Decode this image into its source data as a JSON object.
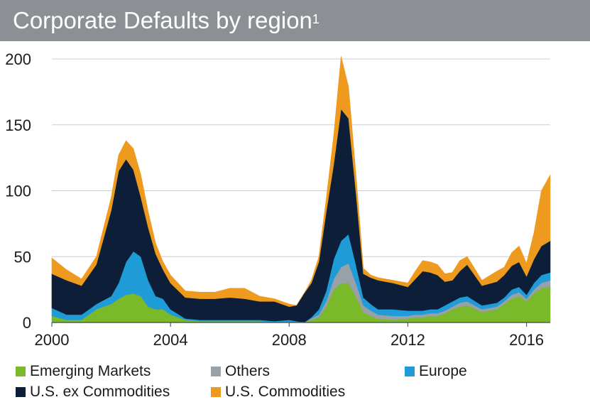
{
  "title": {
    "text": "Corporate Defaults by region",
    "footnote": "1"
  },
  "chart_data": {
    "type": "area",
    "stacked": true,
    "title": "Corporate Defaults by region",
    "xlabel": "",
    "ylabel": "",
    "xlim": [
      2000,
      2016.8
    ],
    "ylim": [
      0,
      200
    ],
    "grid": "horizontal",
    "x_ticks": [
      2000,
      2004,
      2008,
      2012,
      2016
    ],
    "x_tick_labels": [
      "2000",
      "2004",
      "2008",
      "2012",
      "2016"
    ],
    "y_ticks": [
      0,
      50,
      100,
      150,
      200
    ],
    "y_tick_labels": [
      "0",
      "50",
      "100",
      "150",
      "200"
    ],
    "x": [
      2000.0,
      2000.5,
      2001.0,
      2001.5,
      2002.0,
      2002.25,
      2002.5,
      2002.75,
      2003.0,
      2003.25,
      2003.5,
      2003.75,
      2004.0,
      2004.5,
      2005.0,
      2005.5,
      2006.0,
      2006.5,
      2007.0,
      2007.5,
      2008.0,
      2008.25,
      2008.5,
      2008.75,
      2009.0,
      2009.25,
      2009.5,
      2009.75,
      2010.0,
      2010.25,
      2010.5,
      2010.75,
      2011.0,
      2011.5,
      2012.0,
      2012.25,
      2012.5,
      2012.75,
      2013.0,
      2013.25,
      2013.5,
      2013.75,
      2014.0,
      2014.5,
      2015.0,
      2015.25,
      2015.5,
      2015.75,
      2016.0,
      2016.25,
      2016.5,
      2016.8
    ],
    "series": [
      {
        "name": "Emerging Markets",
        "color": "#7ab929",
        "values": [
          5,
          2,
          2,
          10,
          14,
          18,
          21,
          22,
          20,
          12,
          10,
          10,
          6,
          2,
          1,
          1,
          1,
          1,
          1,
          0,
          0,
          0,
          0,
          2,
          4,
          12,
          25,
          30,
          30,
          20,
          8,
          5,
          3,
          2,
          3,
          4,
          4,
          5,
          5,
          7,
          10,
          12,
          13,
          8,
          10,
          14,
          18,
          20,
          16,
          22,
          26,
          27
        ]
      },
      {
        "name": "Others",
        "color": "#98a0a8",
        "values": [
          0,
          0,
          0,
          0,
          0,
          0,
          0,
          0,
          0,
          0,
          0,
          0,
          0,
          0,
          0,
          0,
          0,
          0,
          0,
          0,
          0,
          0,
          0,
          1,
          2,
          4,
          8,
          12,
          15,
          10,
          5,
          4,
          3,
          3,
          2,
          2,
          2,
          2,
          2,
          2,
          2,
          3,
          3,
          2,
          2,
          2,
          3,
          3,
          2,
          3,
          4,
          5
        ]
      },
      {
        "name": "Europe",
        "color": "#1f9bd7",
        "values": [
          6,
          4,
          4,
          4,
          6,
          12,
          25,
          32,
          30,
          20,
          10,
          8,
          4,
          1,
          1,
          1,
          1,
          1,
          1,
          1,
          2,
          1,
          0,
          1,
          4,
          8,
          15,
          20,
          22,
          14,
          6,
          5,
          4,
          5,
          4,
          3,
          3,
          3,
          3,
          4,
          4,
          4,
          4,
          3,
          3,
          3,
          4,
          4,
          3,
          5,
          6,
          6
        ]
      },
      {
        "name": "U.S. ex Commodities",
        "color": "#0d1f38",
        "values": [
          26,
          26,
          22,
          30,
          65,
          85,
          78,
          62,
          45,
          40,
          32,
          22,
          20,
          16,
          16,
          16,
          17,
          16,
          14,
          15,
          10,
          12,
          22,
          26,
          36,
          60,
          72,
          100,
          88,
          55,
          18,
          20,
          22,
          20,
          18,
          24,
          30,
          28,
          26,
          18,
          16,
          20,
          24,
          15,
          16,
          17,
          18,
          19,
          14,
          18,
          22,
          24
        ]
      },
      {
        "name": "U.S. Commodities",
        "color": "#ee9a1e",
        "values": [
          12,
          8,
          5,
          6,
          10,
          12,
          14,
          16,
          17,
          12,
          8,
          6,
          6,
          5,
          5,
          5,
          7,
          8,
          4,
          2,
          2,
          0,
          0,
          2,
          4,
          10,
          22,
          40,
          24,
          14,
          4,
          2,
          2,
          2,
          3,
          6,
          8,
          8,
          8,
          6,
          6,
          8,
          6,
          4,
          8,
          6,
          10,
          12,
          10,
          20,
          42,
          50
        ]
      }
    ],
    "legend": {
      "placement": "bottom",
      "entries": [
        "Emerging Markets",
        "Others",
        "Europe",
        "U.S. ex Commodities",
        "U.S. Commodities"
      ]
    }
  }
}
